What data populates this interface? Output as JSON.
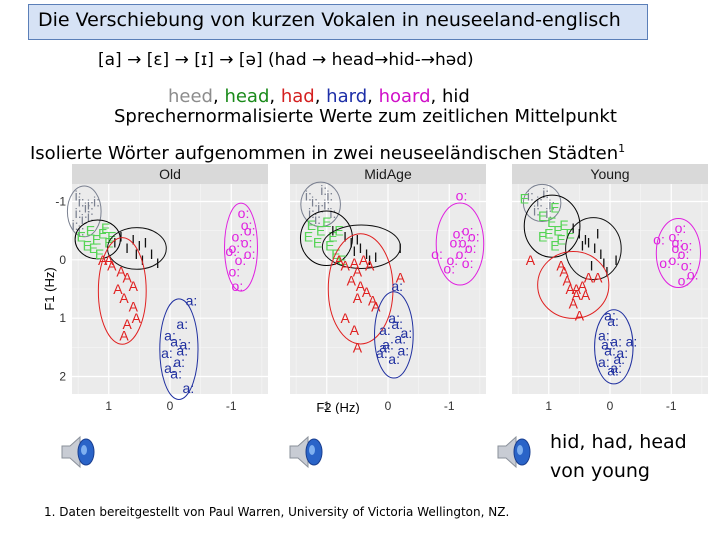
{
  "slide": {
    "title": "Die Verschiebung von kurzen Vokalen in neuseeland-englisch",
    "vowel_chain": "[a] → [ɛ] → [ɪ] → [ə] (had → head→hid-→həd)",
    "words": [
      {
        "text": "heed",
        "color": "#8c8c8c"
      },
      {
        "text": ", ",
        "color": "#000000"
      },
      {
        "text": "head",
        "color": "#1a8a1a"
      },
      {
        "text": ", ",
        "color": "#000000"
      },
      {
        "text": "had",
        "color": "#d42020"
      },
      {
        "text": ", ",
        "color": "#000000"
      },
      {
        "text": "hard",
        "color": "#1e2fa8"
      },
      {
        "text": ", ",
        "color": "#000000"
      },
      {
        "text": "hoard",
        "color": "#d010c8"
      },
      {
        "text": ", hid",
        "color": "#000000"
      }
    ],
    "subtitle": "Sprechernormalisierte Werte zum zeitlichen Mittelpunkt",
    "description": "Isolierte Wörter aufgenommen in zwei neuseeländischen Städten",
    "footnote_mark": "1",
    "caption_line1": "hid, had, head",
    "caption_line2": "von young",
    "footnote": "1. Daten bereitgestellt von Paul Warren, University of Victoria Wellington, NZ."
  },
  "chart_data": {
    "type": "scatter",
    "panels": [
      "Old",
      "MidAge",
      "Young"
    ],
    "xlabel": "F2 (Hz)",
    "ylabel": "F1 (Hz)",
    "x_ticks": [
      "1",
      "0",
      "-1"
    ],
    "y_ticks": [
      "-1",
      "0",
      "1",
      "2"
    ],
    "xlim": [
      1.6,
      -1.6
    ],
    "ylim": [
      -1.3,
      2.3
    ],
    "series": [
      {
        "name": "i:",
        "color": "#7a8090"
      },
      {
        "name": "E",
        "color": "#55d455"
      },
      {
        "name": "I",
        "color": "#111111"
      },
      {
        "name": "A",
        "color": "#e02020"
      },
      {
        "name": "a:",
        "color": "#2030a0"
      },
      {
        "name": "o:",
        "color": "#e020e0"
      }
    ],
    "points": {
      "Old": {
        "i:": [
          [
            1.5,
            -1.1
          ],
          [
            1.45,
            -1.0
          ],
          [
            1.35,
            -0.9
          ],
          [
            1.5,
            -0.8
          ],
          [
            1.4,
            -0.7
          ],
          [
            1.3,
            -0.95
          ],
          [
            1.55,
            -0.6
          ],
          [
            1.45,
            -0.5
          ],
          [
            1.3,
            -0.75
          ],
          [
            1.2,
            -1.0
          ]
        ],
        "E": [
          [
            1.45,
            -0.4
          ],
          [
            1.3,
            -0.5
          ],
          [
            1.2,
            -0.35
          ],
          [
            1.1,
            -0.45
          ],
          [
            1.0,
            -0.3
          ],
          [
            1.25,
            -0.2
          ],
          [
            1.35,
            -0.25
          ],
          [
            1.05,
            -0.55
          ],
          [
            0.95,
            -0.4
          ],
          [
            1.15,
            -0.1
          ]
        ],
        "I": [
          [
            0.9,
            -0.3
          ],
          [
            0.8,
            -0.4
          ],
          [
            0.7,
            -0.2
          ],
          [
            0.6,
            -0.35
          ],
          [
            0.5,
            -0.25
          ],
          [
            0.4,
            -0.3
          ],
          [
            0.3,
            -0.1
          ],
          [
            0.2,
            0.05
          ],
          [
            0.55,
            -0.1
          ],
          [
            0.45,
            0.0
          ]
        ],
        "A": [
          [
            1.1,
            0.0
          ],
          [
            0.95,
            0.1
          ],
          [
            0.8,
            0.2
          ],
          [
            0.7,
            0.3
          ],
          [
            0.6,
            0.45
          ],
          [
            0.85,
            0.5
          ],
          [
            0.75,
            0.65
          ],
          [
            0.6,
            0.8
          ],
          [
            0.7,
            1.1
          ],
          [
            0.75,
            1.3
          ],
          [
            0.55,
            1.0
          ],
          [
            1.0,
            0.0
          ]
        ],
        "a:": [
          [
            0.0,
            1.3
          ],
          [
            -0.1,
            1.4
          ],
          [
            -0.2,
            1.55
          ],
          [
            0.05,
            1.6
          ],
          [
            -0.15,
            1.75
          ],
          [
            0.0,
            1.85
          ],
          [
            -0.25,
            1.45
          ],
          [
            -0.1,
            1.95
          ],
          [
            -0.35,
            0.7
          ],
          [
            -0.2,
            1.1
          ],
          [
            -0.3,
            2.2
          ]
        ],
        "o:": [
          [
            -1.2,
            -0.8
          ],
          [
            -1.3,
            -0.5
          ],
          [
            -1.1,
            -0.4
          ],
          [
            -1.25,
            -0.3
          ],
          [
            -1.05,
            -0.2
          ],
          [
            -1.3,
            -0.1
          ],
          [
            -1.15,
            0.0
          ],
          [
            -1.0,
            -0.15
          ],
          [
            -1.05,
            0.2
          ],
          [
            -1.1,
            0.45
          ],
          [
            -1.25,
            -0.6
          ]
        ]
      },
      "MidAge": {
        "i:": [
          [
            1.3,
            -1.1
          ],
          [
            1.2,
            -1.0
          ],
          [
            1.1,
            -0.9
          ],
          [
            1.25,
            -0.8
          ],
          [
            1.0,
            -0.95
          ],
          [
            0.95,
            -1.1
          ],
          [
            1.15,
            -0.7
          ],
          [
            0.9,
            -0.8
          ],
          [
            1.05,
            -1.2
          ]
        ],
        "E": [
          [
            1.25,
            -0.6
          ],
          [
            1.1,
            -0.5
          ],
          [
            1.0,
            -0.65
          ],
          [
            0.9,
            -0.4
          ],
          [
            1.15,
            -0.3
          ],
          [
            0.95,
            -0.25
          ],
          [
            0.8,
            -0.5
          ],
          [
            1.3,
            -0.4
          ],
          [
            0.85,
            -0.1
          ],
          [
            0.75,
            0.0
          ]
        ],
        "I": [
          [
            0.9,
            -0.5
          ],
          [
            0.7,
            -0.4
          ],
          [
            0.6,
            -0.3
          ],
          [
            0.5,
            -0.35
          ],
          [
            0.45,
            -0.2
          ],
          [
            0.35,
            -0.1
          ],
          [
            0.3,
            0.0
          ],
          [
            0.2,
            -0.05
          ],
          [
            0.55,
            -0.15
          ],
          [
            -0.2,
            -0.2
          ]
        ],
        "A": [
          [
            0.8,
            0.0
          ],
          [
            0.7,
            0.1
          ],
          [
            0.55,
            0.05
          ],
          [
            0.5,
            0.2
          ],
          [
            0.4,
            0.0
          ],
          [
            0.3,
            0.1
          ],
          [
            0.6,
            0.35
          ],
          [
            0.45,
            0.45
          ],
          [
            0.35,
            0.55
          ],
          [
            0.5,
            0.65
          ],
          [
            0.25,
            0.7
          ],
          [
            0.7,
            1.0
          ],
          [
            0.55,
            1.2
          ],
          [
            0.5,
            1.5
          ],
          [
            0.2,
            0.8
          ],
          [
            -0.2,
            0.3
          ]
        ],
        "a:": [
          [
            -0.1,
            1.0
          ],
          [
            -0.15,
            1.1
          ],
          [
            0.05,
            1.2
          ],
          [
            -0.2,
            1.35
          ],
          [
            0.0,
            1.45
          ],
          [
            -0.25,
            1.55
          ],
          [
            -0.1,
            1.7
          ],
          [
            0.1,
            1.6
          ],
          [
            -0.3,
            1.25
          ],
          [
            -0.15,
            0.45
          ],
          [
            0.05,
            1.5
          ]
        ],
        "o:": [
          [
            -1.2,
            -1.1
          ],
          [
            -1.3,
            -0.5
          ],
          [
            -1.15,
            -0.45
          ],
          [
            -1.4,
            -0.4
          ],
          [
            -1.25,
            -0.3
          ],
          [
            -1.35,
            -0.2
          ],
          [
            -1.1,
            -0.3
          ],
          [
            -1.2,
            -0.1
          ],
          [
            -1.05,
            0.0
          ],
          [
            -0.8,
            -0.1
          ],
          [
            -1.0,
            0.15
          ],
          [
            -1.3,
            0.05
          ]
        ]
      },
      "Young": {
        "i:": [
          [
            1.3,
            -1.1
          ],
          [
            1.15,
            -1.0
          ],
          [
            1.05,
            -1.15
          ],
          [
            1.2,
            -0.85
          ],
          [
            0.95,
            -0.95
          ],
          [
            1.0,
            -0.8
          ]
        ],
        "E": [
          [
            1.4,
            -1.05
          ],
          [
            1.1,
            -0.75
          ],
          [
            0.95,
            -0.65
          ],
          [
            0.85,
            -0.5
          ],
          [
            1.0,
            -0.45
          ],
          [
            0.8,
            -0.35
          ],
          [
            0.9,
            -0.25
          ],
          [
            1.1,
            -0.4
          ],
          [
            0.75,
            -0.6
          ],
          [
            0.65,
            -0.45
          ],
          [
            0.9,
            -0.9
          ]
        ],
        "I": [
          [
            0.6,
            -0.55
          ],
          [
            0.5,
            -0.45
          ],
          [
            0.4,
            -0.35
          ],
          [
            0.35,
            -0.3
          ],
          [
            0.25,
            -0.2
          ],
          [
            0.15,
            -0.1
          ],
          [
            0.45,
            -0.25
          ],
          [
            0.3,
            0.1
          ],
          [
            0.1,
            0.05
          ],
          [
            -0.1,
            0.0
          ],
          [
            0.2,
            -0.45
          ],
          [
            0.05,
            0.2
          ]
        ],
        "A": [
          [
            1.3,
            0.0
          ],
          [
            0.8,
            0.1
          ],
          [
            0.75,
            0.2
          ],
          [
            0.7,
            0.35
          ],
          [
            0.65,
            0.5
          ],
          [
            0.55,
            0.6
          ],
          [
            0.45,
            0.45
          ],
          [
            0.35,
            0.3
          ],
          [
            0.6,
            0.75
          ],
          [
            0.5,
            0.95
          ],
          [
            0.4,
            0.6
          ],
          [
            0.2,
            0.3
          ],
          [
            0.55,
            0.5
          ]
        ],
        "a:": [
          [
            -0.05,
            1.05
          ],
          [
            0.1,
            1.3
          ],
          [
            -0.1,
            1.4
          ],
          [
            0.0,
            1.55
          ],
          [
            -0.15,
            1.7
          ],
          [
            0.1,
            1.75
          ],
          [
            -0.1,
            1.85
          ],
          [
            0.05,
            1.45
          ],
          [
            0.0,
            0.95
          ],
          [
            -0.35,
            1.4
          ],
          [
            -0.2,
            1.6
          ],
          [
            -0.05,
            1.9
          ]
        ],
        "o:": [
          [
            -1.05,
            -0.4
          ],
          [
            -1.1,
            -0.3
          ],
          [
            -1.25,
            -0.25
          ],
          [
            -1.1,
            -0.2
          ],
          [
            -1.2,
            -0.1
          ],
          [
            -1.05,
            0.0
          ],
          [
            -1.25,
            0.1
          ],
          [
            -1.15,
            -0.55
          ],
          [
            -1.35,
            0.25
          ],
          [
            -1.2,
            0.35
          ],
          [
            -0.8,
            -0.35
          ],
          [
            -0.9,
            0.05
          ]
        ]
      }
    }
  }
}
